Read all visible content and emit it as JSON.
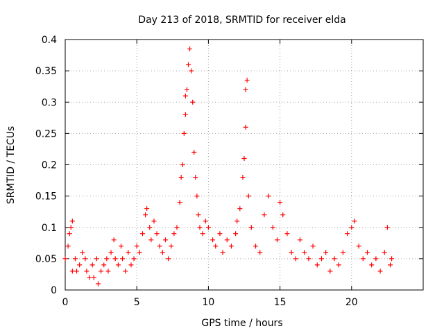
{
  "chart_data": {
    "type": "scatter",
    "title": "Day 213 of 2018, SRMTID for receiver elda",
    "xlabel": "GPS time / hours",
    "ylabel": "SRMTID / TECUs",
    "xlim": [
      0,
      25
    ],
    "ylim": [
      0,
      0.4
    ],
    "x_ticks": [
      0,
      5,
      10,
      15,
      20
    ],
    "x_tick_labels": [
      "0",
      "5",
      "10",
      "15",
      "20"
    ],
    "y_ticks": [
      0,
      0.05,
      0.1,
      0.15,
      0.2,
      0.25,
      0.3,
      0.35,
      0.4
    ],
    "y_tick_labels": [
      "0",
      "0.05",
      "0.1",
      "0.15",
      "0.2",
      "0.25",
      "0.3",
      "0.35",
      "0.4"
    ],
    "grid": true,
    "marker": "+",
    "series": [
      {
        "name": "SRMTID",
        "color": "#ff0000",
        "points": [
          [
            0.0,
            0.05
          ],
          [
            0.2,
            0.07
          ],
          [
            0.3,
            0.09
          ],
          [
            0.4,
            0.1
          ],
          [
            0.5,
            0.11
          ],
          [
            0.5,
            0.03
          ],
          [
            0.7,
            0.05
          ],
          [
            0.8,
            0.03
          ],
          [
            1.0,
            0.04
          ],
          [
            1.2,
            0.06
          ],
          [
            1.4,
            0.05
          ],
          [
            1.5,
            0.03
          ],
          [
            1.7,
            0.02
          ],
          [
            1.9,
            0.04
          ],
          [
            2.0,
            0.02
          ],
          [
            2.2,
            0.05
          ],
          [
            2.3,
            0.01
          ],
          [
            2.5,
            0.03
          ],
          [
            2.7,
            0.04
          ],
          [
            2.9,
            0.05
          ],
          [
            3.0,
            0.03
          ],
          [
            3.2,
            0.06
          ],
          [
            3.4,
            0.08
          ],
          [
            3.5,
            0.05
          ],
          [
            3.7,
            0.04
          ],
          [
            3.9,
            0.07
          ],
          [
            4.0,
            0.05
          ],
          [
            4.2,
            0.03
          ],
          [
            4.4,
            0.06
          ],
          [
            4.6,
            0.04
          ],
          [
            4.8,
            0.05
          ],
          [
            5.0,
            0.07
          ],
          [
            5.2,
            0.06
          ],
          [
            5.4,
            0.09
          ],
          [
            5.6,
            0.12
          ],
          [
            5.7,
            0.13
          ],
          [
            5.9,
            0.1
          ],
          [
            6.0,
            0.08
          ],
          [
            6.2,
            0.11
          ],
          [
            6.4,
            0.09
          ],
          [
            6.6,
            0.07
          ],
          [
            6.8,
            0.06
          ],
          [
            7.0,
            0.08
          ],
          [
            7.2,
            0.05
          ],
          [
            7.4,
            0.07
          ],
          [
            7.6,
            0.09
          ],
          [
            7.8,
            0.1
          ],
          [
            8.0,
            0.14
          ],
          [
            8.1,
            0.18
          ],
          [
            8.2,
            0.2
          ],
          [
            8.3,
            0.25
          ],
          [
            8.4,
            0.28
          ],
          [
            8.4,
            0.31
          ],
          [
            8.5,
            0.32
          ],
          [
            8.6,
            0.36
          ],
          [
            8.7,
            0.385
          ],
          [
            8.8,
            0.35
          ],
          [
            8.9,
            0.3
          ],
          [
            9.0,
            0.22
          ],
          [
            9.1,
            0.18
          ],
          [
            9.2,
            0.15
          ],
          [
            9.3,
            0.12
          ],
          [
            9.4,
            0.1
          ],
          [
            9.6,
            0.09
          ],
          [
            9.8,
            0.11
          ],
          [
            10.0,
            0.1
          ],
          [
            10.3,
            0.08
          ],
          [
            10.5,
            0.07
          ],
          [
            10.8,
            0.09
          ],
          [
            11.0,
            0.06
          ],
          [
            11.3,
            0.08
          ],
          [
            11.6,
            0.07
          ],
          [
            11.9,
            0.09
          ],
          [
            12.0,
            0.11
          ],
          [
            12.2,
            0.13
          ],
          [
            12.4,
            0.18
          ],
          [
            12.5,
            0.21
          ],
          [
            12.6,
            0.26
          ],
          [
            12.6,
            0.32
          ],
          [
            12.7,
            0.335
          ],
          [
            12.8,
            0.15
          ],
          [
            13.0,
            0.1
          ],
          [
            13.3,
            0.07
          ],
          [
            13.6,
            0.06
          ],
          [
            13.9,
            0.12
          ],
          [
            14.2,
            0.15
          ],
          [
            14.5,
            0.1
          ],
          [
            14.8,
            0.08
          ],
          [
            15.0,
            0.14
          ],
          [
            15.2,
            0.12
          ],
          [
            15.5,
            0.09
          ],
          [
            15.8,
            0.06
          ],
          [
            16.1,
            0.05
          ],
          [
            16.4,
            0.08
          ],
          [
            16.7,
            0.06
          ],
          [
            17.0,
            0.05
          ],
          [
            17.3,
            0.07
          ],
          [
            17.6,
            0.04
          ],
          [
            17.9,
            0.05
          ],
          [
            18.2,
            0.06
          ],
          [
            18.5,
            0.03
          ],
          [
            18.8,
            0.05
          ],
          [
            19.1,
            0.04
          ],
          [
            19.4,
            0.06
          ],
          [
            19.7,
            0.09
          ],
          [
            20.0,
            0.1
          ],
          [
            20.2,
            0.11
          ],
          [
            20.5,
            0.07
          ],
          [
            20.8,
            0.05
          ],
          [
            21.1,
            0.06
          ],
          [
            21.4,
            0.04
          ],
          [
            21.7,
            0.05
          ],
          [
            22.0,
            0.03
          ],
          [
            22.3,
            0.06
          ],
          [
            22.5,
            0.1
          ],
          [
            22.7,
            0.04
          ],
          [
            22.8,
            0.05
          ]
        ]
      }
    ]
  }
}
